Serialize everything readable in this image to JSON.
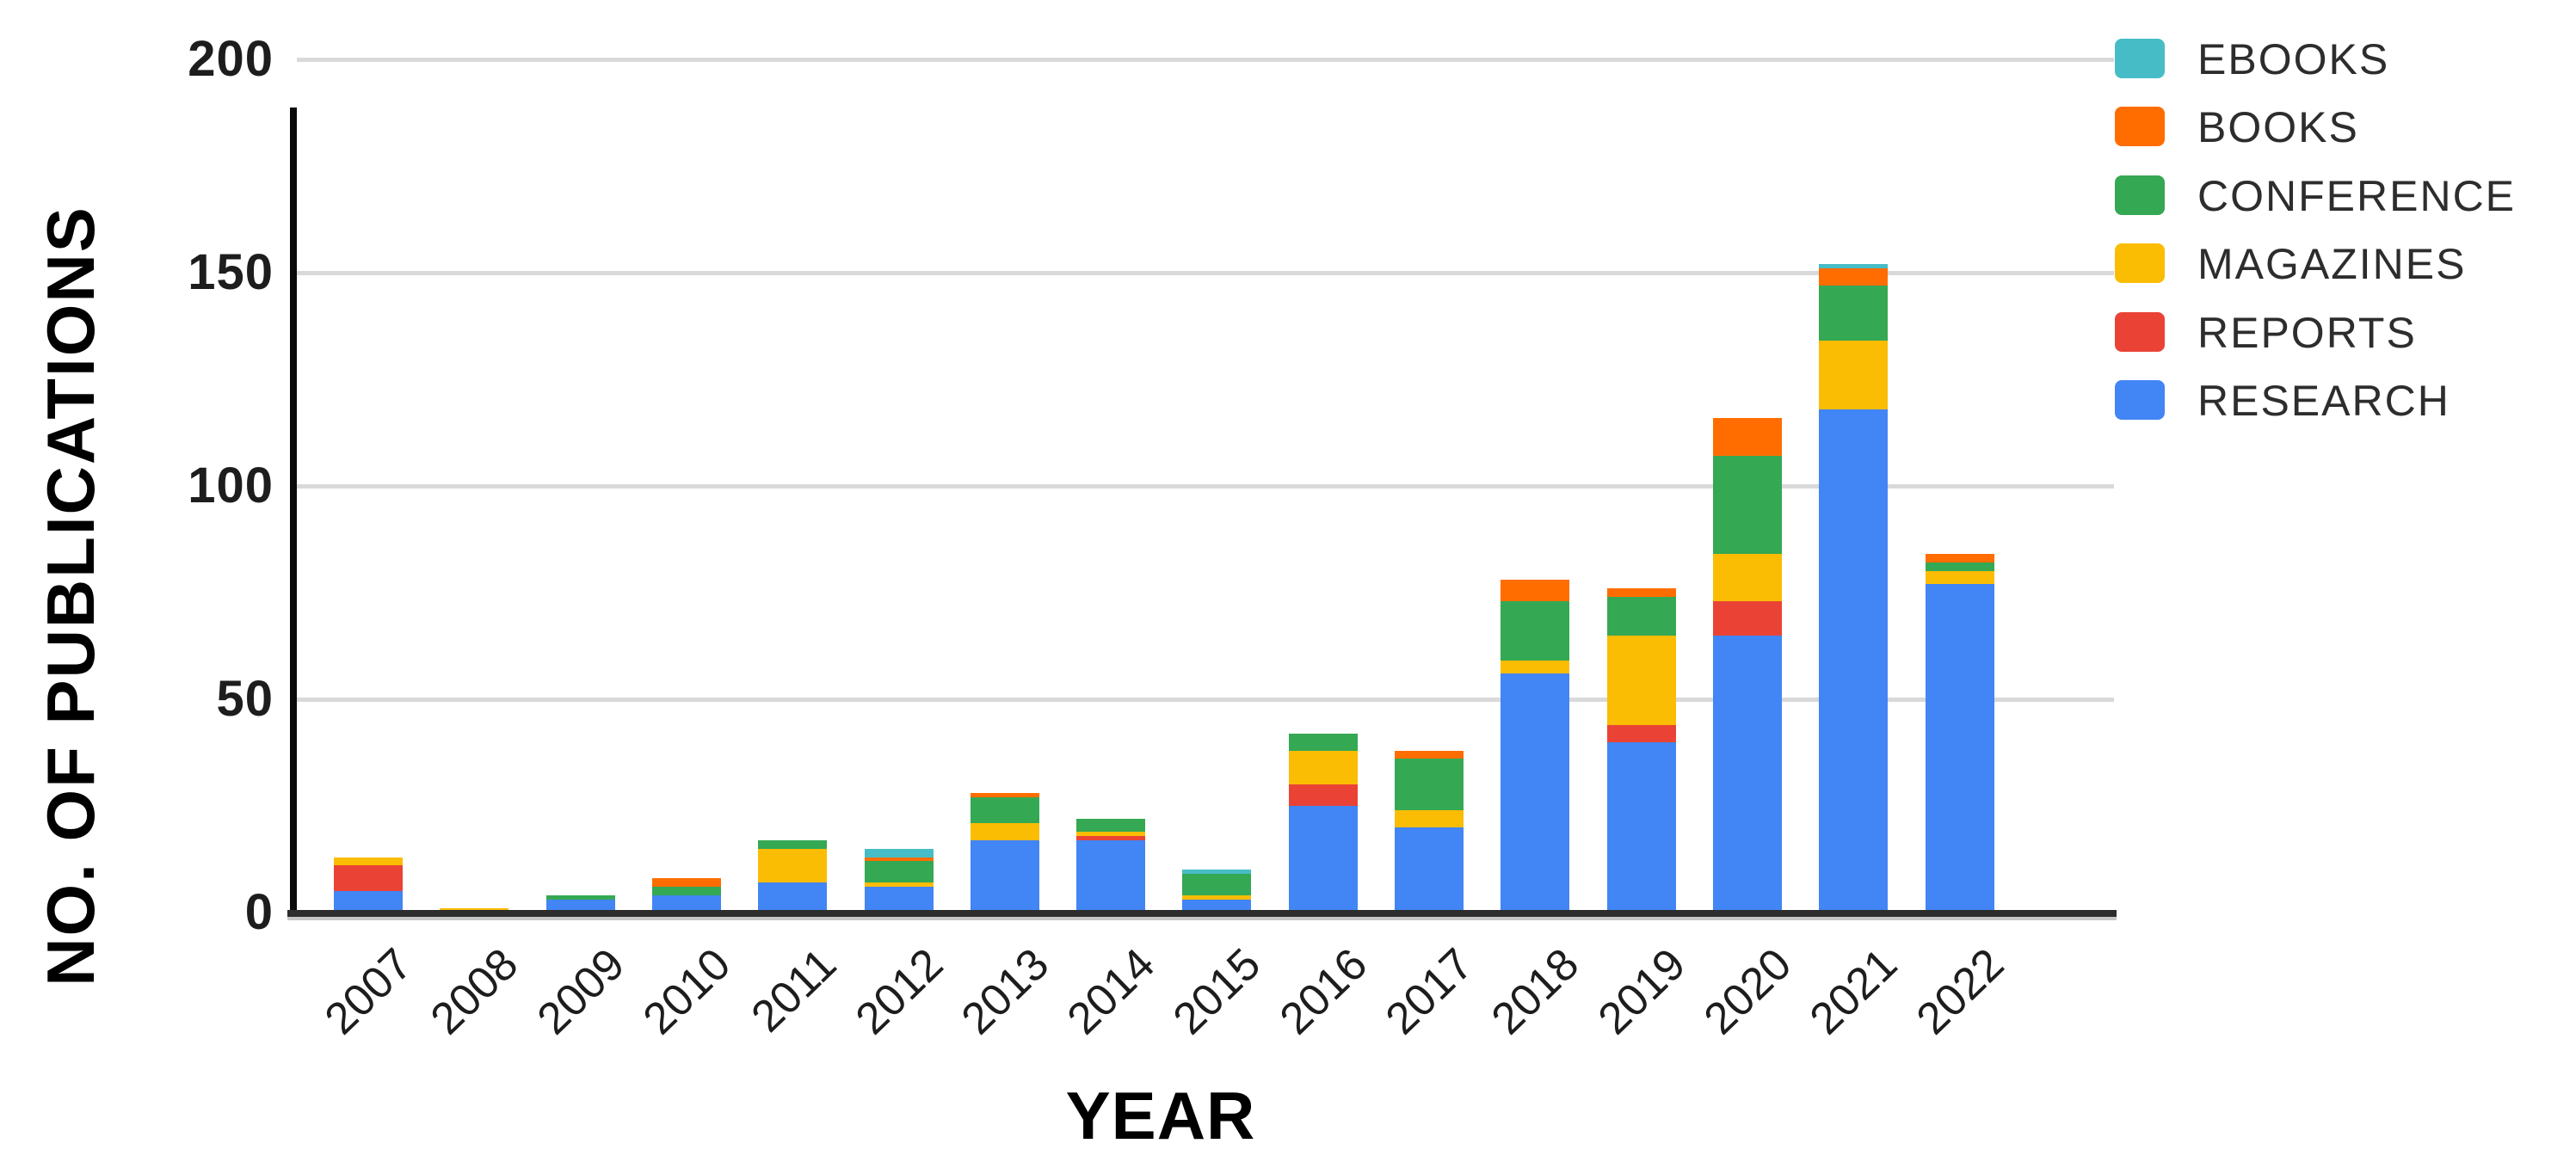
{
  "page": {
    "background": "#ffffff"
  },
  "chart": {
    "y_axis": {
      "title": "NO. OF PUBLICATIONS"
    },
    "x_axis": {
      "title": "YEAR"
    }
  },
  "legend": {
    "items": [
      {
        "label": "EBOOKS",
        "color": "#46BDC6"
      },
      {
        "label": "BOOKS",
        "color": "#FF6D01"
      },
      {
        "label": "CONFERENCE",
        "color": "#34A853"
      },
      {
        "label": "MAGAZINES",
        "color": "#FBBC04"
      },
      {
        "label": "REPORTS",
        "color": "#EA4335"
      },
      {
        "label": "RESEARCH",
        "color": "#4285F4"
      }
    ]
  },
  "chart_data": {
    "type": "bar",
    "stacked": true,
    "stack_order": "bottom_to_top",
    "title": "",
    "xlabel": "YEAR",
    "ylabel": "NO. OF PUBLICATIONS",
    "ylim": [
      0,
      200
    ],
    "yticks": [
      0,
      50,
      100,
      150,
      200
    ],
    "grid": true,
    "legend_position": "right",
    "categories": [
      "2007",
      "2008",
      "2009",
      "2010",
      "2011",
      "2012",
      "2013",
      "2014",
      "2015",
      "2016",
      "2017",
      "2018",
      "2019",
      "2020",
      "2021",
      "2022"
    ],
    "series": [
      {
        "name": "RESEARCH",
        "color": "#4285F4",
        "values": [
          5,
          0,
          3,
          4,
          7,
          6,
          17,
          17,
          3,
          25,
          20,
          56,
          40,
          65,
          118,
          77
        ]
      },
      {
        "name": "REPORTS",
        "color": "#EA4335",
        "values": [
          6,
          0,
          0,
          0,
          0,
          0,
          0,
          1,
          0,
          5,
          0,
          0,
          4,
          8,
          0,
          0
        ]
      },
      {
        "name": "MAGAZINES",
        "color": "#FBBC04",
        "values": [
          2,
          1,
          0,
          0,
          8,
          1,
          4,
          1,
          1,
          8,
          4,
          3,
          21,
          11,
          16,
          3
        ]
      },
      {
        "name": "CONFERENCE",
        "color": "#34A853",
        "values": [
          0,
          0,
          1,
          2,
          2,
          5,
          6,
          3,
          5,
          4,
          12,
          14,
          9,
          23,
          13,
          2
        ]
      },
      {
        "name": "BOOKS",
        "color": "#FF6D01",
        "values": [
          0,
          0,
          0,
          2,
          0,
          1,
          1,
          0,
          0,
          0,
          2,
          5,
          2,
          9,
          4,
          2
        ]
      },
      {
        "name": "EBOOKS",
        "color": "#46BDC6",
        "values": [
          0,
          0,
          0,
          0,
          0,
          2,
          0,
          0,
          1,
          0,
          0,
          0,
          0,
          0,
          1,
          0
        ]
      }
    ],
    "totals": [
      13,
      1,
      4,
      8,
      17,
      15,
      28,
      22,
      10,
      42,
      38,
      78,
      76,
      116,
      152,
      84
    ]
  }
}
